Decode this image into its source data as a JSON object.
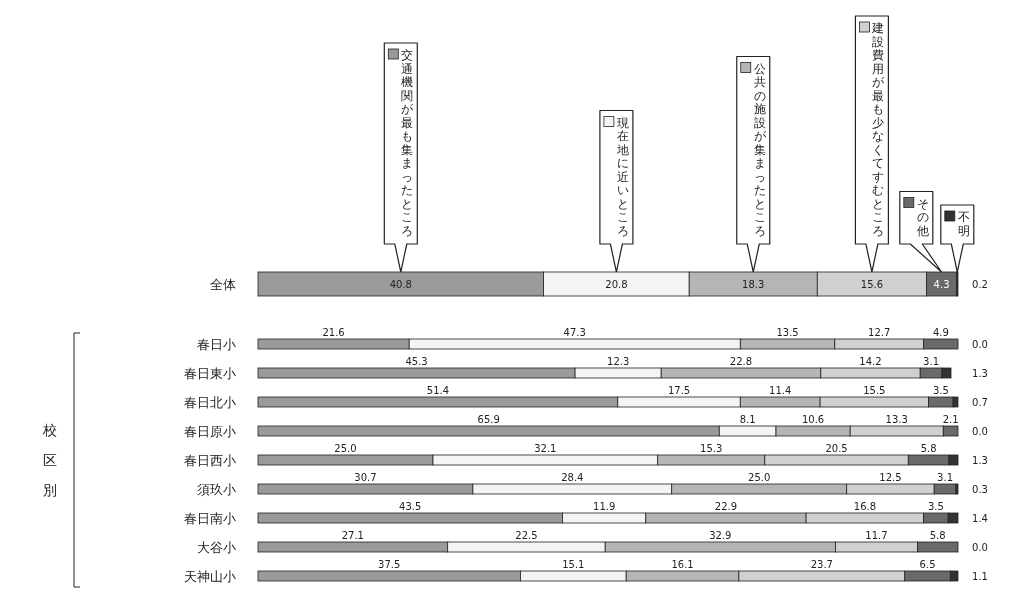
{
  "chart_data": {
    "type": "bar",
    "orientation": "horizontal",
    "stacked": true,
    "tick_labels": "y",
    "legend": "top",
    "xlim": [
      0,
      100
    ],
    "categories": [
      "全体",
      "春日小",
      "春日東小",
      "春日北小",
      "春日原小",
      "春日西小",
      "須玖小",
      "春日南小",
      "大谷小",
      "天神山小"
    ],
    "annotations": [
      "校区別"
    ],
    "series": [
      {
        "name": "交通機関が最も集まったところ",
        "color": "#9a9a9a",
        "values": [
          40.8,
          21.6,
          45.3,
          51.4,
          65.9,
          25.0,
          30.7,
          43.5,
          27.1,
          37.5
        ],
        "value_labels": [
          "40.8",
          "21.6",
          "45.3",
          "51.4",
          "65.9",
          "25.0",
          "30.7",
          "43.5",
          "27.1",
          "37.5"
        ]
      },
      {
        "name": "現在地に近いところ",
        "color": "#f4f4f4",
        "values": [
          20.8,
          47.3,
          12.3,
          17.5,
          8.1,
          32.1,
          28.4,
          11.9,
          22.5,
          15.1
        ],
        "value_labels": [
          "20.8",
          "47.3",
          "12.3",
          "17.5",
          "8.1",
          "32.1",
          "28.4",
          "11.9",
          "22.5",
          "15.1"
        ]
      },
      {
        "name": "公共の施設が集まったところ",
        "color": "#b5b5b5",
        "values": [
          18.3,
          13.5,
          22.8,
          11.4,
          10.6,
          15.3,
          25.0,
          22.9,
          32.9,
          16.1
        ],
        "value_labels": [
          "18.3",
          "13.5",
          "22.8",
          "11.4",
          "10.6",
          "15.3",
          "25.0",
          "22.9",
          "32.9",
          "16.1"
        ]
      },
      {
        "name": "建設費用が最も少なくてすむところ",
        "color": "#d0d0d0",
        "values": [
          15.6,
          12.7,
          14.2,
          15.5,
          13.3,
          20.5,
          12.5,
          16.8,
          11.7,
          23.7
        ],
        "value_labels": [
          "15.6",
          "12.7",
          "14.2",
          "15.5",
          "13.3",
          "20.5",
          "12.5",
          "16.8",
          "11.7",
          "23.7"
        ]
      },
      {
        "name": "その他",
        "color": "#6a6a6a",
        "values": [
          4.3,
          4.9,
          3.1,
          3.5,
          2.1,
          5.8,
          3.1,
          3.5,
          5.8,
          6.5
        ],
        "value_labels": [
          "4.3",
          "4.9",
          "3.1",
          "3.5",
          "2.1",
          "5.8",
          "3.1",
          "3.5",
          "5.8",
          "6.5"
        ]
      },
      {
        "name": "不明",
        "color": "#333333",
        "values": [
          0.2,
          0.0,
          1.3,
          0.7,
          0.0,
          1.3,
          0.3,
          1.4,
          0.0,
          1.1
        ],
        "value_labels": [
          "0.2",
          "0.0",
          "1.3",
          "0.7",
          "0.0",
          "1.3",
          "0.3",
          "1.4",
          "0.0",
          "1.1"
        ]
      }
    ]
  }
}
